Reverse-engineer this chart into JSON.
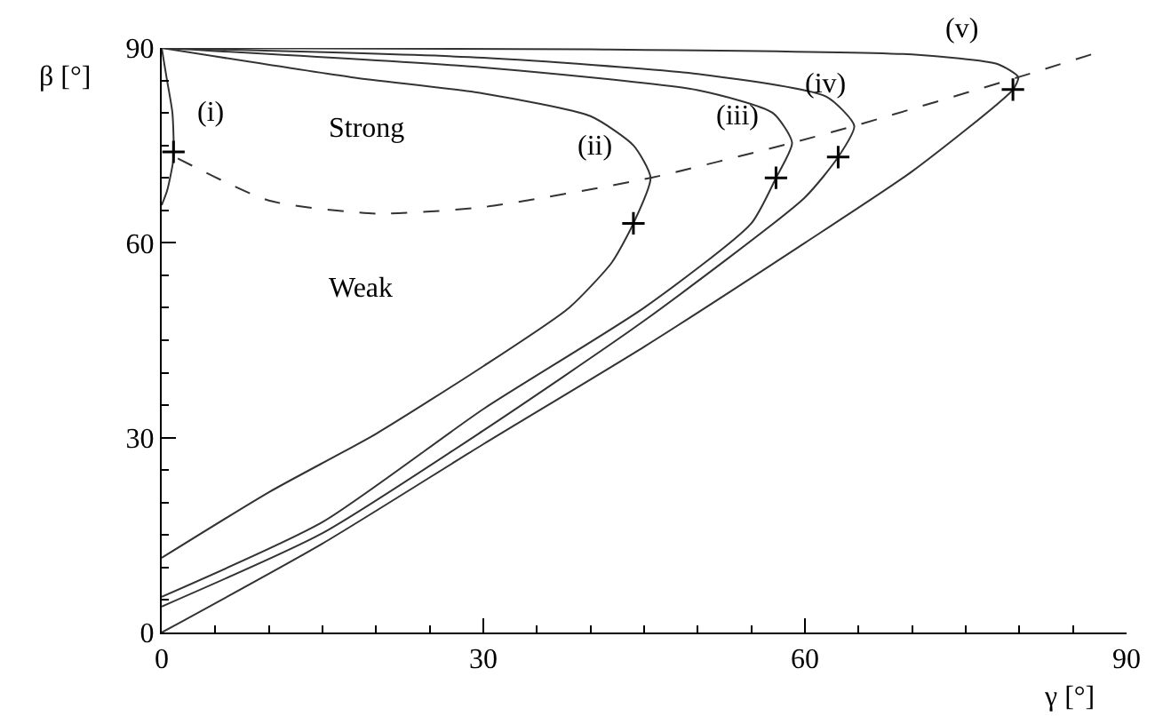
{
  "chart_data": {
    "type": "line",
    "xlabel": "γ [°]",
    "ylabel": "β [°]",
    "xlim": [
      0,
      90
    ],
    "ylim": [
      0,
      90
    ],
    "xticks": [
      0,
      30,
      60,
      90
    ],
    "yticks": [
      0,
      30,
      60,
      90
    ],
    "grid": false,
    "line_style": "solid",
    "marker": "none",
    "series": [
      {
        "color": "#333333",
        "x": [
          0,
          0.5,
          1.1,
          1.0,
          0.5,
          0
        ],
        "values": [
          65.8,
          68,
          73,
          80,
          85,
          90
        ]
      },
      {
        "color": "#333333",
        "x": [
          0,
          10,
          20,
          30,
          38,
          42,
          44,
          45.6,
          44,
          40,
          30,
          17.7,
          0
        ],
        "values": [
          11.5,
          21.6,
          30.6,
          41,
          50,
          57,
          63,
          70,
          75,
          79.5,
          83,
          85.5,
          90
        ]
      },
      {
        "color": "#333333",
        "x": [
          0,
          15,
          30,
          45,
          55,
          57.3,
          58.8,
          57,
          50,
          30,
          0
        ],
        "values": [
          5.5,
          17,
          34.4,
          50,
          63,
          70,
          75.4,
          80,
          83.5,
          87,
          90
        ]
      },
      {
        "color": "#333333",
        "x": [
          0,
          15,
          30,
          45,
          60,
          63.1,
          64.6,
          62,
          50,
          30,
          0
        ],
        "values": [
          4,
          15.3,
          31.1,
          48,
          67,
          73.2,
          78,
          82.5,
          86,
          88.5,
          90
        ]
      },
      {
        "color": "#333333",
        "x": [
          0,
          15,
          30,
          45,
          60,
          70,
          79.4,
          79.9,
          78,
          70,
          40,
          0
        ],
        "values": [
          0,
          13.7,
          29,
          44,
          60,
          71,
          83.6,
          85.5,
          87.5,
          89,
          89.8,
          90
        ]
      },
      {
        "color": "#333333",
        "line_style": "dashed",
        "x": [
          1.5,
          10,
          20,
          30,
          45.6,
          58.8,
          64.6,
          79.9,
          86.7
        ],
        "values": [
          73,
          66.5,
          64.5,
          65.5,
          70,
          75.4,
          78,
          85.5,
          89
        ]
      },
      {
        "type": "scatter",
        "color": "#000000",
        "marker": "cross",
        "x": [
          1.1,
          44,
          57.3,
          63.1,
          79.4
        ],
        "values": [
          74,
          63,
          70,
          73.2,
          83.6
        ]
      }
    ],
    "annotations": [
      "(i)",
      "(ii)",
      "(iii)",
      "(iv)",
      "(v)",
      "Strong",
      "Weak"
    ]
  }
}
